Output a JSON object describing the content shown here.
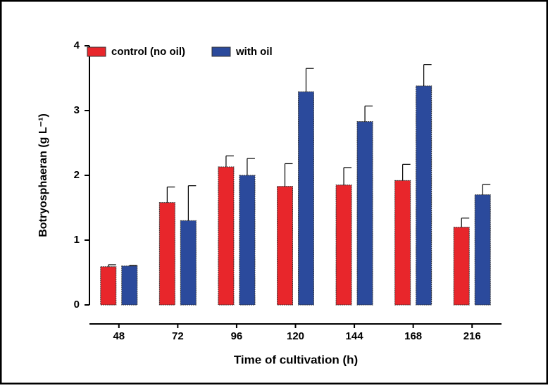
{
  "chart_data": {
    "type": "bar",
    "x_label": "Time of cultivation (h)",
    "y_label": "Botryosphaeran (g L⁻¹)",
    "categories": [
      "48",
      "72",
      "96",
      "120",
      "144",
      "168",
      "216"
    ],
    "series": [
      {
        "name": "control (no oil)",
        "color": "#e8262b",
        "values": [
          0.59,
          1.58,
          2.13,
          1.83,
          1.85,
          1.92,
          1.2
        ],
        "errors": [
          0.03,
          0.24,
          0.17,
          0.35,
          0.27,
          0.25,
          0.14
        ]
      },
      {
        "name": "with oil",
        "color": "#2b4a9c",
        "values": [
          0.6,
          1.3,
          2.0,
          3.29,
          2.83,
          3.38,
          1.7
        ],
        "errors": [
          0.01,
          0.54,
          0.26,
          0.36,
          0.24,
          0.33,
          0.16
        ]
      }
    ],
    "ylim": [
      0,
      4
    ],
    "yticks": [
      0,
      1,
      2,
      3,
      4
    ],
    "legend": "top-left",
    "grid": false
  }
}
